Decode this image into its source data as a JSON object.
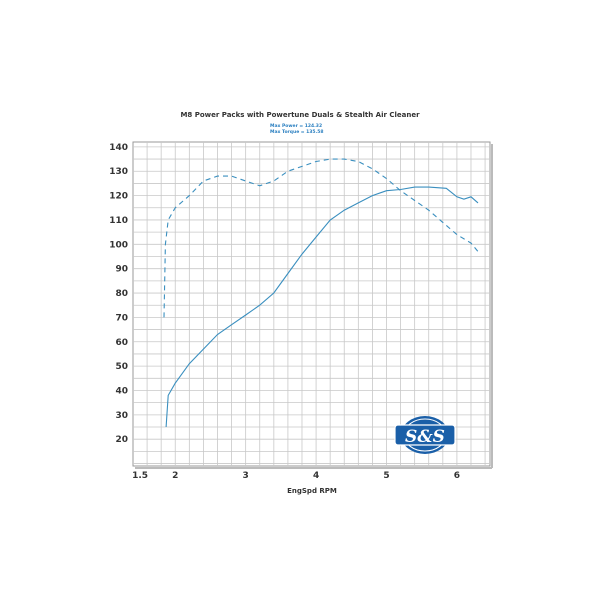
{
  "chart_data": {
    "type": "line",
    "title": "M8 Power Packs with Powertune Duals & Stealth Air Cleaner",
    "annotations": [
      "Max Power  = 124.32",
      "Max Torque = 135.58"
    ],
    "xlabel": "EngSpd RPM",
    "ylabel": "",
    "xlim": [
      1.4,
      6.47
    ],
    "ylim": [
      9,
      142
    ],
    "x_ticks": [
      "1.5",
      "2",
      "3",
      "4",
      "5",
      "6"
    ],
    "y_ticks": [
      "20",
      "30",
      "40",
      "50",
      "60",
      "70",
      "80",
      "90",
      "100",
      "110",
      "120",
      "130",
      "140"
    ],
    "grid": true,
    "series": [
      {
        "style": "solid",
        "color": "#3a8fbf",
        "x": [
          1.87,
          1.9,
          2.0,
          2.2,
          2.4,
          2.6,
          2.8,
          3.0,
          3.2,
          3.4,
          3.6,
          3.8,
          4.0,
          4.2,
          4.4,
          4.6,
          4.8,
          5.0,
          5.2,
          5.4,
          5.6,
          5.85,
          6.0,
          6.1,
          6.2,
          6.3
        ],
        "y": [
          25,
          38,
          43,
          51,
          57,
          63,
          67,
          71,
          75,
          80,
          88,
          96,
          103,
          110,
          114,
          117,
          120,
          122,
          122.5,
          123.5,
          123.5,
          123,
          119.5,
          118.5,
          119.5,
          117
        ]
      },
      {
        "style": "dashed",
        "color": "#3a8fbf",
        "x": [
          1.84,
          1.86,
          1.9,
          2.0,
          2.2,
          2.4,
          2.6,
          2.8,
          3.0,
          3.2,
          3.4,
          3.6,
          3.8,
          4.0,
          4.2,
          4.4,
          4.6,
          4.8,
          5.0,
          5.2,
          5.4,
          5.6,
          5.8,
          6.0,
          6.2,
          6.33
        ],
        "y": [
          70,
          100,
          110,
          115,
          120,
          126,
          128,
          128,
          126,
          124,
          126,
          130,
          132,
          134,
          135,
          135,
          134,
          131,
          127,
          122,
          118,
          114,
          109,
          104,
          100.5,
          96
        ]
      }
    ]
  },
  "logo": {
    "text": "S&S",
    "top_arc": "PROVEN",
    "bottom_arc": "PERFORMANCE",
    "color": "#1a5fa8"
  }
}
